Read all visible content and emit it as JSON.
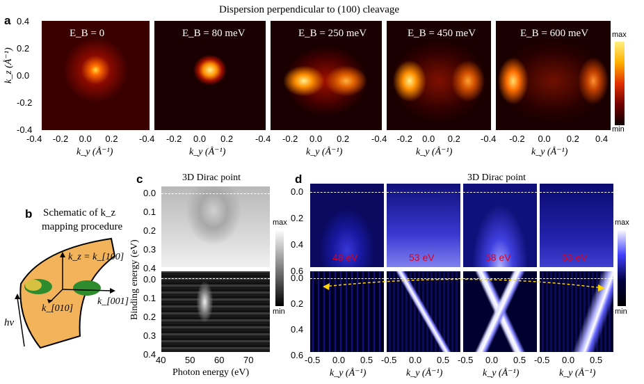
{
  "figure_title": "Dispersion perpendicular to (100) cleavage",
  "panel_labels": {
    "a": "a",
    "b": "b",
    "c": "c",
    "d": "d"
  },
  "panel_a": {
    "ylabel": "k_z (Å⁻¹)",
    "xlabel": "k_y (Å⁻¹)",
    "yticks": [
      "0.4",
      "0.2",
      "0.0",
      "-0.2",
      "-0.4"
    ],
    "xticks": [
      "-0.4",
      "-0.2",
      "0.0",
      "0.2"
    ],
    "xticks_last": [
      "-0.4",
      "-0.2",
      "0.0",
      "0.2",
      "0.4"
    ],
    "energies": [
      "E_B = 0",
      "E_B = 80 meV",
      "E_B = 250 meV",
      "E_B = 450 meV",
      "E_B = 600 meV"
    ],
    "colorbar_max": "max",
    "colorbar_min": "min"
  },
  "panel_b": {
    "title_line1": "Schematic of k_z",
    "title_line2": "mapping procedure",
    "kz_label": "k_z = k_[100]",
    "k010_label": "k_[010]",
    "k001_label": "k_[001]",
    "hv_label": "hν"
  },
  "panel_c": {
    "title": "3D Dirac point",
    "ylabel": "Binding energy (eV)",
    "xlabel": "Photon energy (eV)",
    "yticks_top": [
      "0.0",
      "0.1",
      "0.2",
      "0.3",
      "0.4"
    ],
    "yticks_bottom": [
      "0.0",
      "0.1",
      "0.2",
      "0.3",
      "0.4"
    ],
    "xticks": [
      "40",
      "50",
      "60",
      "70"
    ],
    "colorbar_max": "max",
    "colorbar_min": "min"
  },
  "panel_d": {
    "title": "3D Dirac point",
    "yticks_top": [
      "0.0",
      "0.2",
      "0.4",
      "0.6"
    ],
    "yticks_bottom": [
      "0.0",
      "0.2",
      "0.4",
      "0.6"
    ],
    "xticks": [
      "-0.5",
      "0.0",
      "0.5"
    ],
    "xlabel": "k_y (Å⁻¹)",
    "photon_energies": [
      "48 eV",
      "53 eV",
      "58 eV",
      "63 eV"
    ],
    "colorbar_max": "max",
    "colorbar_min": "min"
  }
}
